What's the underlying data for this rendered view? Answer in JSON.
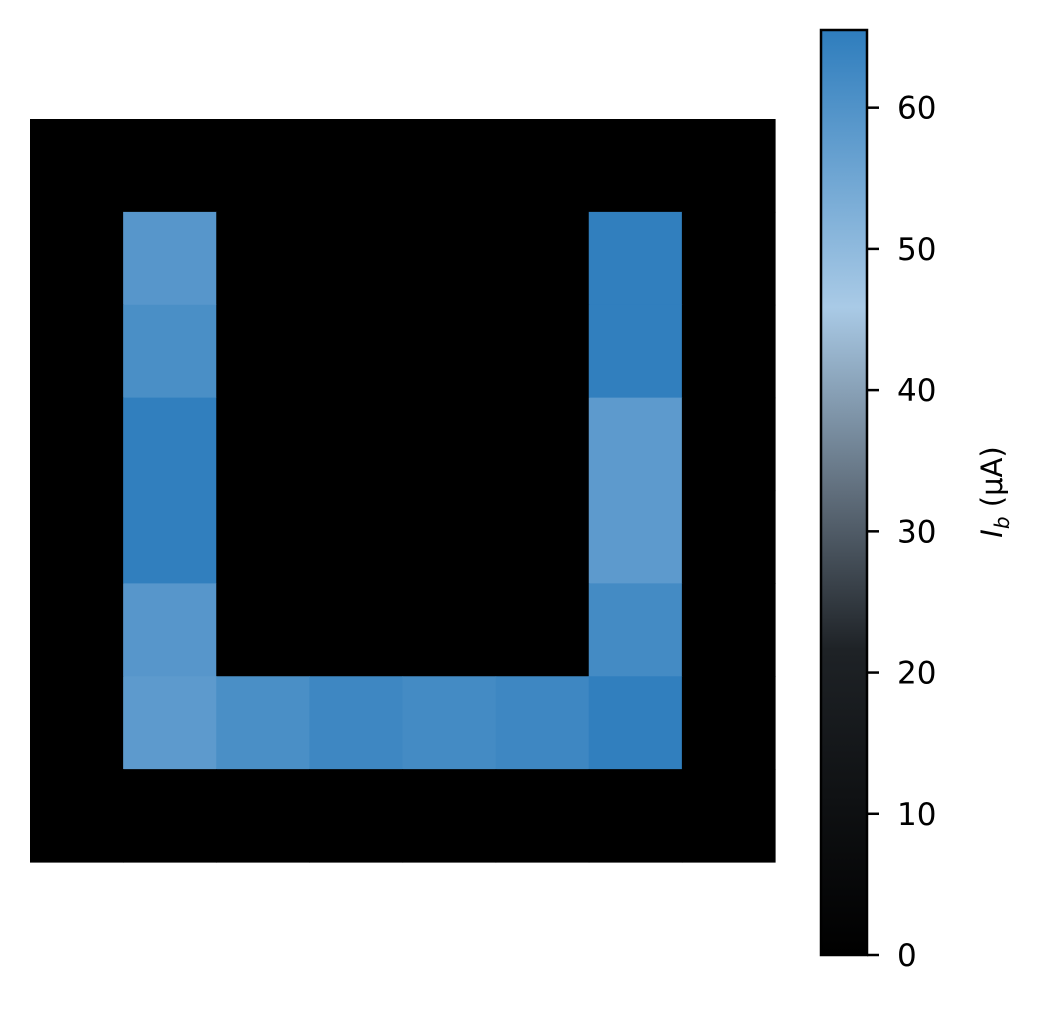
{
  "chart_data": {
    "type": "heatmap",
    "title": "",
    "rows": 8,
    "cols": 8,
    "values": [
      [
        0,
        0,
        0,
        0,
        0,
        0,
        0,
        0
      ],
      [
        0,
        59,
        0,
        0,
        0,
        0,
        65,
        0
      ],
      [
        0,
        61,
        0,
        0,
        0,
        0,
        65,
        0
      ],
      [
        0,
        65,
        0,
        0,
        0,
        0,
        58,
        0
      ],
      [
        0,
        65,
        0,
        0,
        0,
        0,
        58,
        0
      ],
      [
        0,
        59,
        0,
        0,
        0,
        0,
        62,
        0
      ],
      [
        0,
        58,
        61,
        63,
        62,
        63,
        65,
        0
      ],
      [
        0,
        0,
        0,
        0,
        0,
        0,
        0,
        0
      ]
    ],
    "axes_visible": false,
    "colorbar": {
      "label_main": "I",
      "label_sub": "b",
      "label_unit": " (μA)",
      "vmin": 0,
      "vmax": 65.5,
      "ticks": [
        0,
        10,
        20,
        30,
        40,
        50,
        60
      ],
      "colormap": [
        {
          "pos": 0.0,
          "color": "#000000"
        },
        {
          "pos": 0.33,
          "color": "#1e2226"
        },
        {
          "pos": 0.5,
          "color": "#606e7c"
        },
        {
          "pos": 0.7,
          "color": "#a9cae6"
        },
        {
          "pos": 1.0,
          "color": "#2e7dbd"
        }
      ]
    }
  }
}
